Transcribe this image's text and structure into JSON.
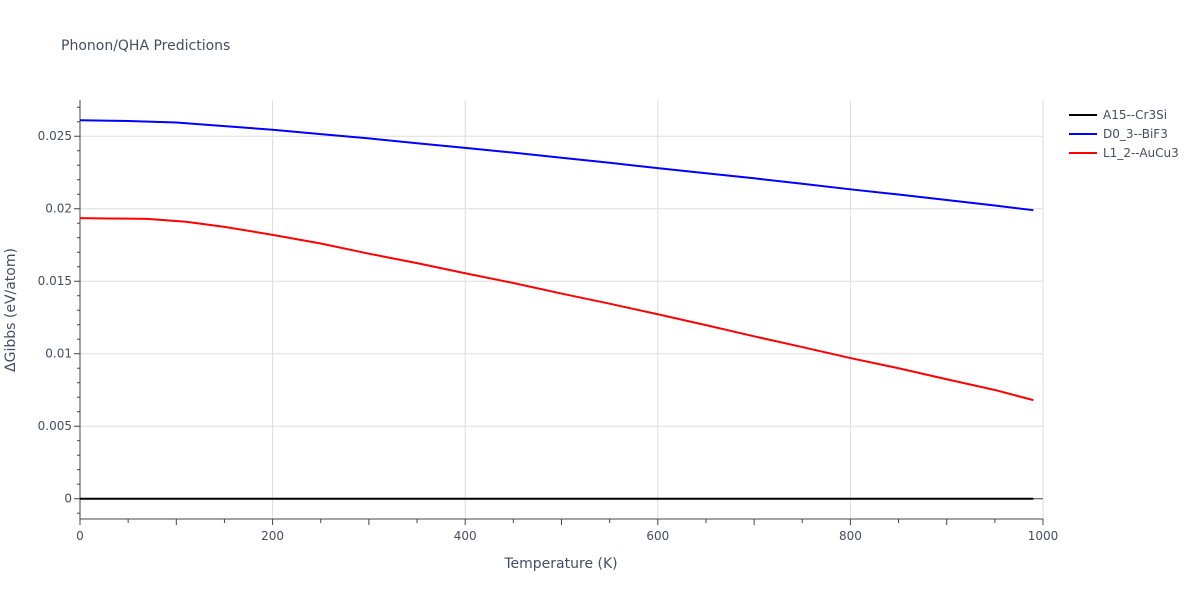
{
  "chart_data": {
    "type": "line",
    "title": "Phonon/QHA Predictions",
    "xlabel": "Temperature (K)",
    "ylabel": "ΔGibbs (eV/atom)",
    "xlim": [
      0,
      1000
    ],
    "ylim": [
      -0.0014,
      0.0275
    ],
    "x_ticks": [
      0,
      200,
      400,
      600,
      800,
      1000
    ],
    "x_tick_labels": [
      "0",
      "200",
      "400",
      "600",
      "800",
      "1000"
    ],
    "y_ticks": [
      0,
      0.005,
      0.01,
      0.015,
      0.02,
      0.025
    ],
    "y_tick_labels": [
      "0",
      "0.005",
      "0.01",
      "0.015",
      "0.02",
      "0.025"
    ],
    "grid": true,
    "legend_position": "top-right",
    "series": [
      {
        "name": "A15--Cr3Si",
        "color": "#000000",
        "x": [
          0,
          100,
          200,
          300,
          400,
          500,
          600,
          700,
          800,
          900,
          990
        ],
        "y": [
          0,
          0,
          0,
          0,
          0,
          0,
          0,
          0,
          0,
          0,
          0
        ]
      },
      {
        "name": "D0_3--BiF3",
        "color": "#0000ff",
        "x": [
          0,
          50,
          100,
          150,
          200,
          250,
          300,
          350,
          400,
          450,
          500,
          550,
          600,
          650,
          700,
          750,
          800,
          850,
          900,
          950,
          990
        ],
        "y": [
          0.0261,
          0.02605,
          0.02595,
          0.0257,
          0.02545,
          0.02515,
          0.02485,
          0.02452,
          0.0242,
          0.02387,
          0.02352,
          0.02317,
          0.0228,
          0.02245,
          0.0221,
          0.02172,
          0.02134,
          0.02098,
          0.0206,
          0.02022,
          0.0199
        ]
      },
      {
        "name": "L1_2--AuCu3",
        "color": "#ff0000",
        "x": [
          0,
          30,
          70,
          110,
          150,
          200,
          250,
          300,
          350,
          400,
          450,
          500,
          550,
          600,
          650,
          700,
          750,
          800,
          850,
          900,
          950,
          990
        ],
        "y": [
          0.01935,
          0.01933,
          0.0193,
          0.0191,
          0.01875,
          0.0182,
          0.0176,
          0.0169,
          0.01625,
          0.01555,
          0.01488,
          0.01415,
          0.01345,
          0.01272,
          0.01197,
          0.0112,
          0.01046,
          0.0097,
          0.009,
          0.00824,
          0.0075,
          0.0068
        ]
      }
    ]
  }
}
